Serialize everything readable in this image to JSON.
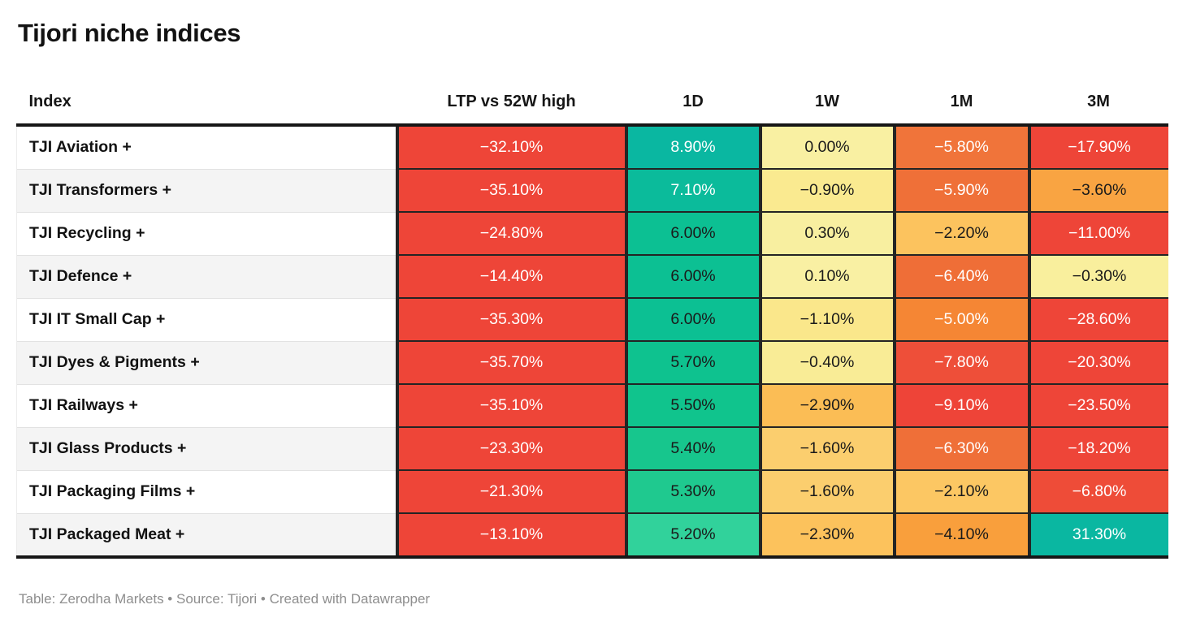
{
  "title": "Tijori niche indices",
  "footer": "Table: Zerodha Markets • Source: Tijori • Created with Datawrapper",
  "palette": {
    "strong_green": "#0ab7a1",
    "mid_green": "#0cc093",
    "light_green": "#31d29b",
    "pale_yellow": "#f9f0a2",
    "amber": "#fcc763",
    "strong_amber": "#f9a23f",
    "orange": "#f0743a",
    "red": "#ee4538",
    "header_rule": "#161616",
    "row_stripe": "#f4f4f4"
  },
  "table": {
    "headers": [
      "Index",
      "LTP vs 52W high",
      "1D",
      "1W",
      "1M",
      "3M"
    ],
    "rows": [
      {
        "name": "TJI Aviation +",
        "cells": [
          {
            "value": "−32.10%",
            "bg": "#ee4538",
            "fg": "#ffffff"
          },
          {
            "value": "8.90%",
            "bg": "#0ab7a1",
            "fg": "#ffffff"
          },
          {
            "value": "0.00%",
            "bg": "#f9f0a2",
            "fg": "#1a1a1a"
          },
          {
            "value": "−5.80%",
            "bg": "#f0743a",
            "fg": "#ffffff"
          },
          {
            "value": "−17.90%",
            "bg": "#ee4538",
            "fg": "#ffffff"
          }
        ]
      },
      {
        "name": "TJI Transformers +",
        "cells": [
          {
            "value": "−35.10%",
            "bg": "#ee4538",
            "fg": "#ffffff"
          },
          {
            "value": "7.10%",
            "bg": "#0bbb9b",
            "fg": "#ffffff"
          },
          {
            "value": "−0.90%",
            "bg": "#faea90",
            "fg": "#1a1a1a"
          },
          {
            "value": "−5.90%",
            "bg": "#ef7038",
            "fg": "#ffffff"
          },
          {
            "value": "−3.60%",
            "bg": "#f9a442",
            "fg": "#1a1a1a"
          }
        ]
      },
      {
        "name": "TJI Recycling +",
        "cells": [
          {
            "value": "−24.80%",
            "bg": "#ee4538",
            "fg": "#ffffff"
          },
          {
            "value": "6.00%",
            "bg": "#0cc093",
            "fg": "#1a1a1a"
          },
          {
            "value": "0.30%",
            "bg": "#f8efa0",
            "fg": "#1a1a1a"
          },
          {
            "value": "−2.20%",
            "bg": "#fcc35e",
            "fg": "#1a1a1a"
          },
          {
            "value": "−11.00%",
            "bg": "#ee4538",
            "fg": "#ffffff"
          }
        ]
      },
      {
        "name": "TJI Defence +",
        "cells": [
          {
            "value": "−14.40%",
            "bg": "#ee4538",
            "fg": "#ffffff"
          },
          {
            "value": "6.00%",
            "bg": "#0cc093",
            "fg": "#1a1a1a"
          },
          {
            "value": "0.10%",
            "bg": "#f9f0a3",
            "fg": "#1a1a1a"
          },
          {
            "value": "−6.40%",
            "bg": "#ef6e37",
            "fg": "#ffffff"
          },
          {
            "value": "−0.30%",
            "bg": "#f9ef9d",
            "fg": "#1a1a1a"
          }
        ]
      },
      {
        "name": "TJI IT Small Cap +",
        "cells": [
          {
            "value": "−35.30%",
            "bg": "#ee4538",
            "fg": "#ffffff"
          },
          {
            "value": "6.00%",
            "bg": "#0cc093",
            "fg": "#1a1a1a"
          },
          {
            "value": "−1.10%",
            "bg": "#fae78b",
            "fg": "#1a1a1a"
          },
          {
            "value": "−5.00%",
            "bg": "#f58634",
            "fg": "#ffffff"
          },
          {
            "value": "−28.60%",
            "bg": "#ee4538",
            "fg": "#ffffff"
          }
        ]
      },
      {
        "name": "TJI Dyes & Pigments +",
        "cells": [
          {
            "value": "−35.70%",
            "bg": "#ee4538",
            "fg": "#ffffff"
          },
          {
            "value": "5.70%",
            "bg": "#0ec28f",
            "fg": "#1a1a1a"
          },
          {
            "value": "−0.40%",
            "bg": "#f9ec96",
            "fg": "#1a1a1a"
          },
          {
            "value": "−7.80%",
            "bg": "#ee4f39",
            "fg": "#ffffff"
          },
          {
            "value": "−20.30%",
            "bg": "#ee4538",
            "fg": "#ffffff"
          }
        ]
      },
      {
        "name": "TJI Railways +",
        "cells": [
          {
            "value": "−35.10%",
            "bg": "#ee4538",
            "fg": "#ffffff"
          },
          {
            "value": "5.50%",
            "bg": "#10c48d",
            "fg": "#1a1a1a"
          },
          {
            "value": "−2.90%",
            "bg": "#fbbd55",
            "fg": "#1a1a1a"
          },
          {
            "value": "−9.10%",
            "bg": "#ee4438",
            "fg": "#ffffff"
          },
          {
            "value": "−23.50%",
            "bg": "#ee4538",
            "fg": "#ffffff"
          }
        ]
      },
      {
        "name": "TJI Glass Products +",
        "cells": [
          {
            "value": "−23.30%",
            "bg": "#ee4538",
            "fg": "#ffffff"
          },
          {
            "value": "5.40%",
            "bg": "#17c68d",
            "fg": "#1a1a1a"
          },
          {
            "value": "−1.60%",
            "bg": "#fbce6e",
            "fg": "#1a1a1a"
          },
          {
            "value": "−6.30%",
            "bg": "#ef6f38",
            "fg": "#ffffff"
          },
          {
            "value": "−18.20%",
            "bg": "#ee4538",
            "fg": "#ffffff"
          }
        ]
      },
      {
        "name": "TJI Packaging Films +",
        "cells": [
          {
            "value": "−21.30%",
            "bg": "#ee4538",
            "fg": "#ffffff"
          },
          {
            "value": "5.30%",
            "bg": "#1fc98f",
            "fg": "#1a1a1a"
          },
          {
            "value": "−1.60%",
            "bg": "#fbce6e",
            "fg": "#1a1a1a"
          },
          {
            "value": "−2.10%",
            "bg": "#fcc763",
            "fg": "#1a1a1a"
          },
          {
            "value": "−6.80%",
            "bg": "#ee4c38",
            "fg": "#ffffff"
          }
        ]
      },
      {
        "name": "TJI Packaged Meat +",
        "cells": [
          {
            "value": "−13.10%",
            "bg": "#ee4538",
            "fg": "#ffffff"
          },
          {
            "value": "5.20%",
            "bg": "#31d29b",
            "fg": "#1a1a1a"
          },
          {
            "value": "−2.30%",
            "bg": "#fcc25c",
            "fg": "#1a1a1a"
          },
          {
            "value": "−4.10%",
            "bg": "#f99f3c",
            "fg": "#1a1a1a"
          },
          {
            "value": "31.30%",
            "bg": "#0ab7a1",
            "fg": "#ffffff"
          }
        ]
      }
    ]
  },
  "chart_data": {
    "type": "table",
    "title": "Tijori niche indices",
    "categories": [
      "TJI Aviation +",
      "TJI Transformers +",
      "TJI Recycling +",
      "TJI Defence +",
      "TJI IT Small Cap +",
      "TJI Dyes & Pigments +",
      "TJI Railways +",
      "TJI Glass Products +",
      "TJI Packaging Films +",
      "TJI Packaged Meat +"
    ],
    "series": [
      {
        "name": "LTP vs 52W high",
        "values": [
          -32.1,
          -35.1,
          -24.8,
          -14.4,
          -35.3,
          -35.7,
          -35.1,
          -23.3,
          -21.3,
          -13.1
        ]
      },
      {
        "name": "1D",
        "values": [
          8.9,
          7.1,
          6.0,
          6.0,
          6.0,
          5.7,
          5.5,
          5.4,
          5.3,
          5.2
        ]
      },
      {
        "name": "1W",
        "values": [
          0.0,
          -0.9,
          0.3,
          0.1,
          -1.1,
          -0.4,
          -2.9,
          -1.6,
          -1.6,
          -2.3
        ]
      },
      {
        "name": "1M",
        "values": [
          -5.8,
          -5.9,
          -2.2,
          -6.4,
          -5.0,
          -7.8,
          -9.1,
          -6.3,
          -2.1,
          -4.1
        ]
      },
      {
        "name": "3M",
        "values": [
          -17.9,
          -3.6,
          -11.0,
          -0.3,
          -28.6,
          -20.3,
          -23.5,
          -18.2,
          -6.8,
          31.3
        ]
      }
    ],
    "unit": "%",
    "color_scale": "red-yellow-green heatmap per cell",
    "legend": "none",
    "footer": "Table: Zerodha Markets • Source: Tijori • Created with Datawrapper"
  }
}
